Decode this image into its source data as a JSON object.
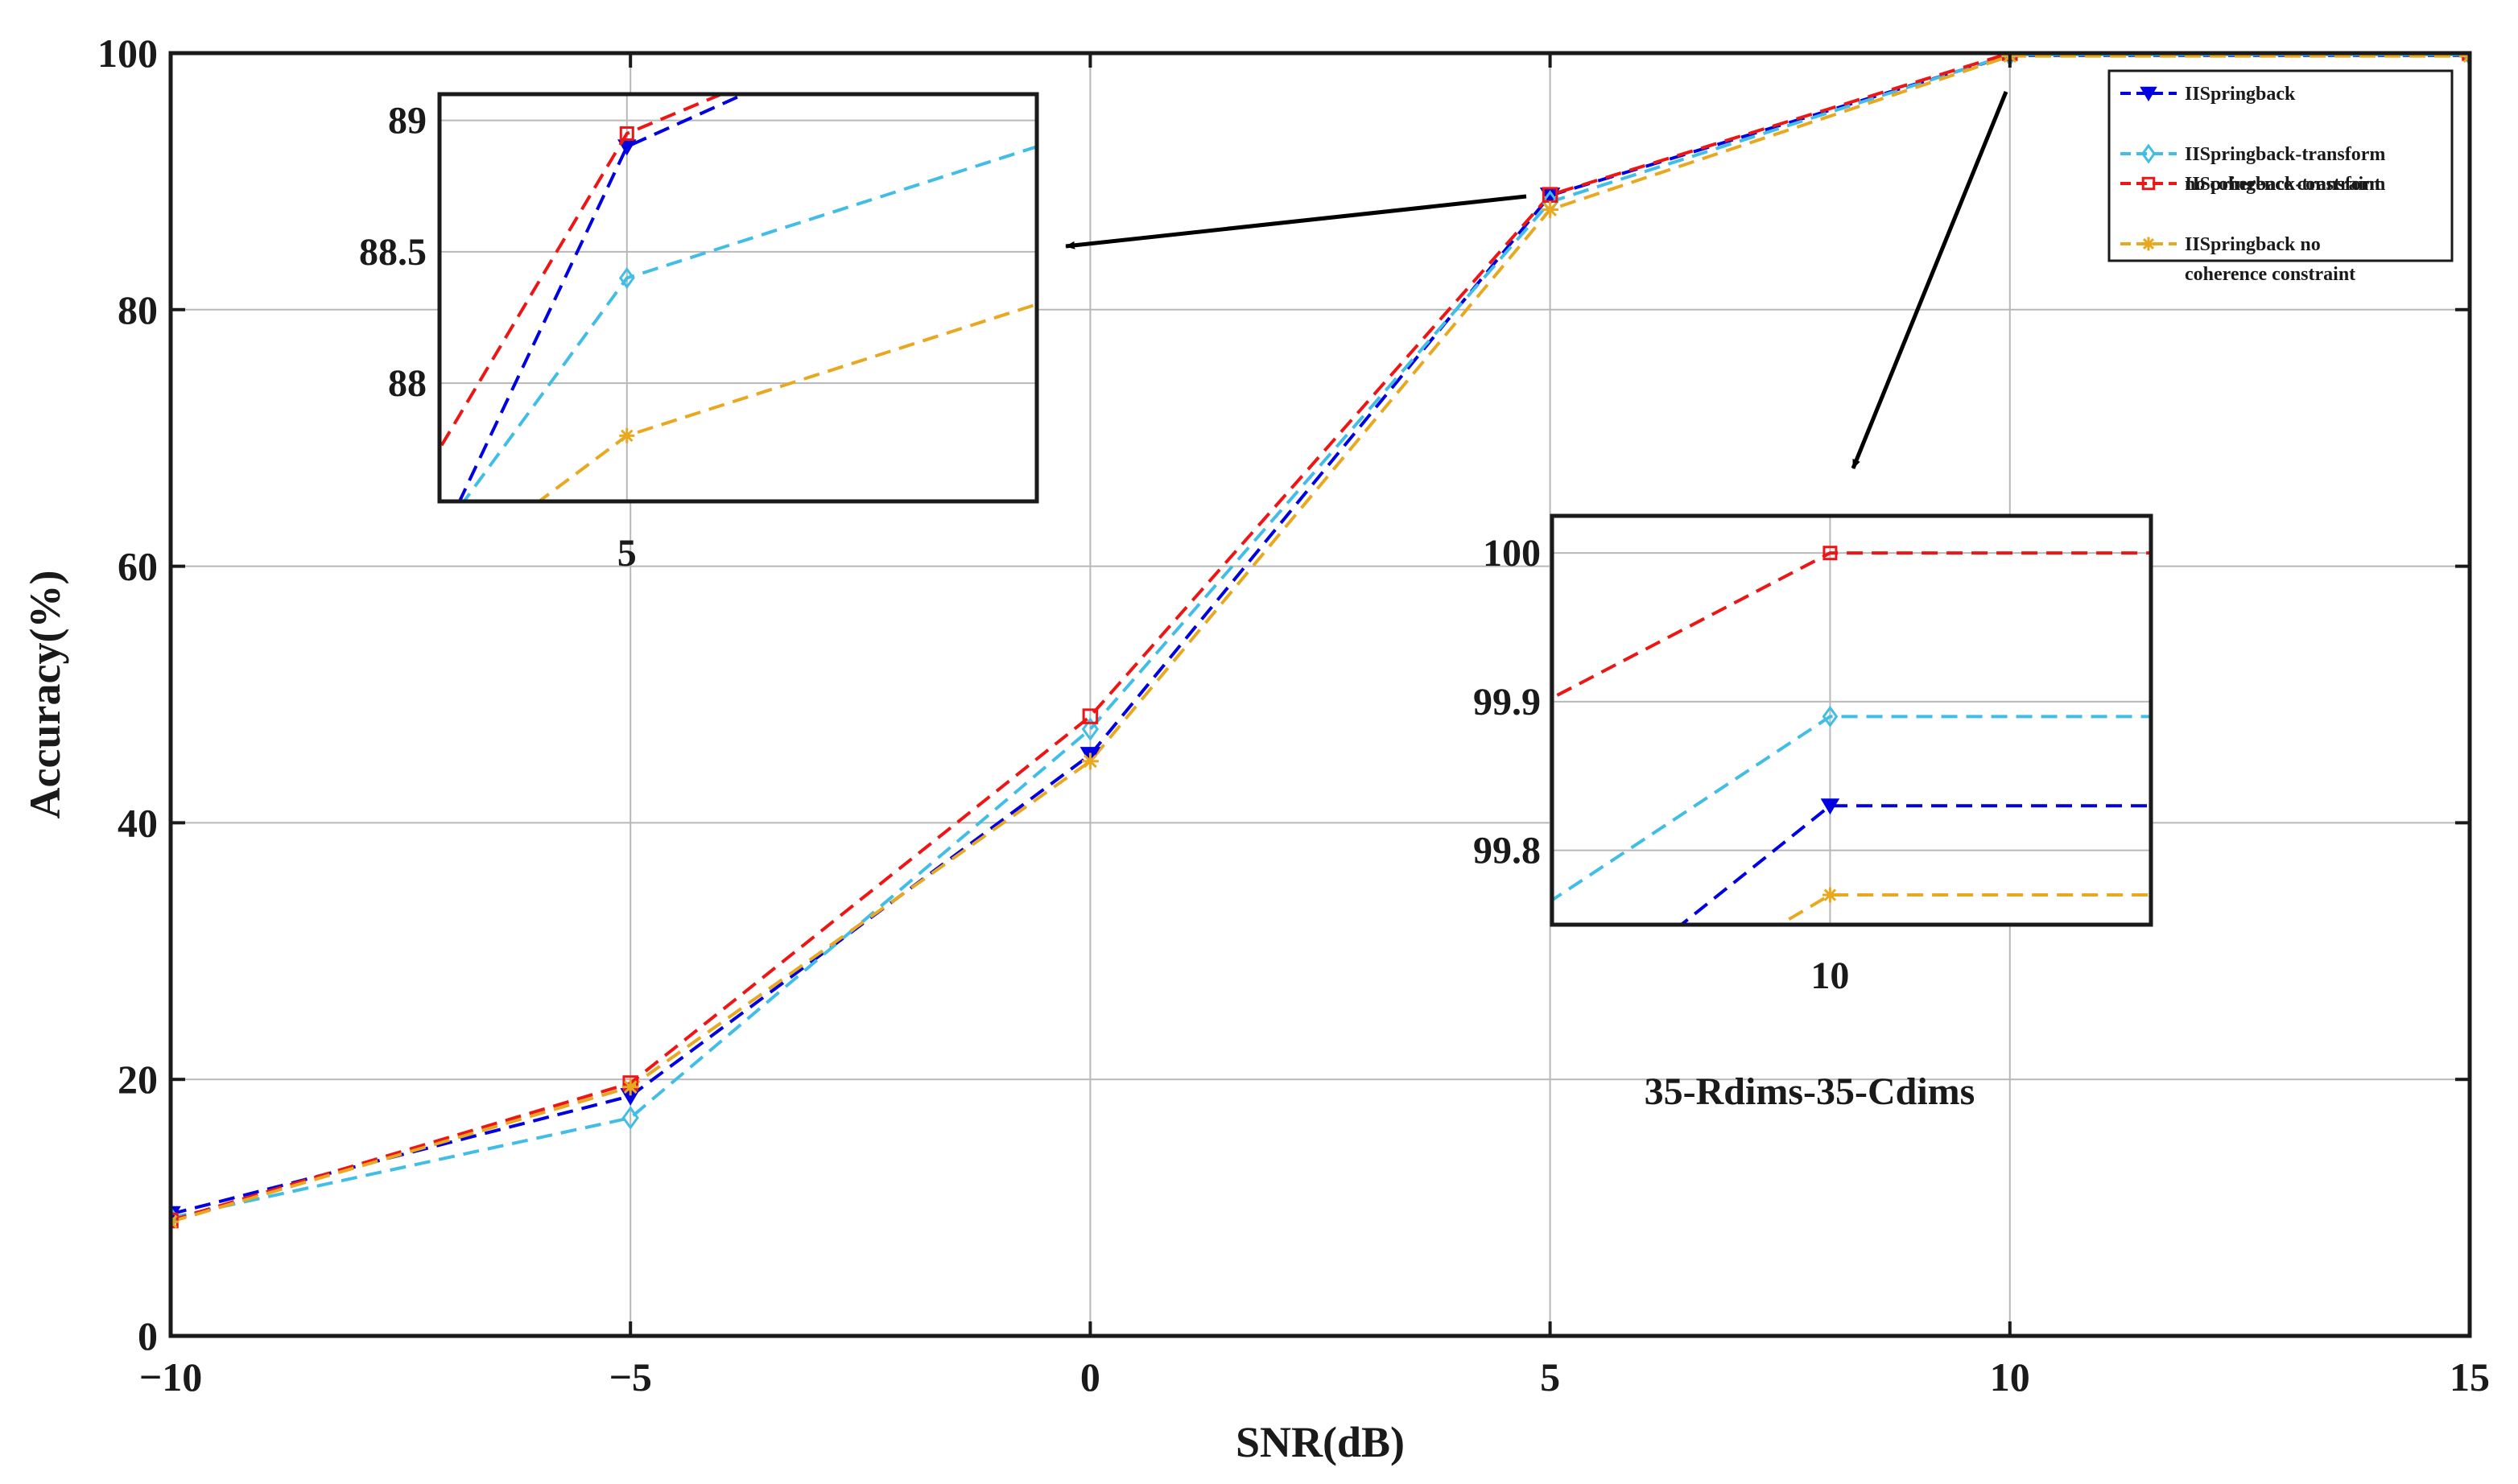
{
  "chart_data": {
    "type": "line",
    "title": "",
    "xlabel": "SNR(dB)",
    "ylabel": "Accuracy(%)",
    "xlim": [
      -10,
      15
    ],
    "ylim": [
      0,
      100
    ],
    "xticks": [
      -10,
      -5,
      0,
      5,
      10,
      15
    ],
    "yticks": [
      0,
      20,
      40,
      60,
      80,
      100
    ],
    "xtick_labels": [
      "−10",
      "−5",
      "0",
      "5",
      "10",
      "15"
    ],
    "ytick_labels": [
      "0",
      "20",
      "40",
      "60",
      "80",
      "100"
    ],
    "grid": true,
    "legend_position": "top-right",
    "x": [
      -10,
      -5,
      0,
      5,
      10,
      15
    ],
    "series": [
      {
        "name": "IISpringback",
        "legend_lines": [
          "IISpringback"
        ],
        "color": "#0000e0",
        "marker": "triangle-down",
        "values": [
          9.5,
          18.7,
          45.3,
          88.9,
          99.83,
          99.83
        ]
      },
      {
        "name": "IISpringback-transform no coherence constraint",
        "legend_lines": [
          "IISpringback-transform",
          "no coherence constraint"
        ],
        "color": "#42bde6",
        "marker": "diamond",
        "values": [
          9.2,
          17.0,
          47.3,
          88.4,
          99.89,
          99.89
        ]
      },
      {
        "name": "IISpringback-transform",
        "legend_lines": [
          "IISpringback-transform"
        ],
        "color": "#ee1515",
        "marker": "square",
        "values": [
          9.0,
          19.7,
          48.3,
          88.95,
          100.0,
          100.0
        ]
      },
      {
        "name": "IISpringback no coherence constraint",
        "legend_lines": [
          "IISpringback no",
          "coherence constraint"
        ],
        "color": "#e8a820",
        "marker": "asterisk",
        "values": [
          8.9,
          19.4,
          44.8,
          87.8,
          99.77,
          99.77
        ]
      }
    ],
    "insets": [
      {
        "name": "zoom-at-5",
        "xlim": [
          4.84,
          5.35
        ],
        "ylim": [
          87.55,
          89.1
        ],
        "xticks": [
          5
        ],
        "xtick_labels": [
          "5"
        ],
        "yticks": [
          88,
          88.5,
          89
        ],
        "ytick_labels": [
          "88",
          "88.5",
          "89"
        ],
        "series_values": [
          {
            "series": "IISpringback",
            "points": [
              [
                4.82,
                87.2
              ],
              [
                5.0,
                88.9
              ],
              [
                5.35,
                89.6
              ]
            ]
          },
          {
            "series": "IISpringback-transform no coherence constraint",
            "points": [
              [
                4.82,
                87.3
              ],
              [
                5.0,
                88.4
              ],
              [
                5.35,
                88.9
              ]
            ]
          },
          {
            "series": "IISpringback-transform",
            "points": [
              [
                4.82,
                87.6
              ],
              [
                5.0,
                88.95
              ],
              [
                5.35,
                89.6
              ]
            ]
          },
          {
            "series": "IISpringback no coherence constraint",
            "points": [
              [
                4.82,
                87.2
              ],
              [
                5.0,
                87.8
              ],
              [
                5.35,
                88.3
              ]
            ]
          }
        ]
      },
      {
        "name": "zoom-at-10",
        "xlim": [
          9.35,
          10.75
        ],
        "ylim": [
          99.75,
          100.025
        ],
        "xticks": [
          10
        ],
        "xtick_labels": [
          "10"
        ],
        "yticks": [
          99.8,
          99.9,
          100
        ],
        "ytick_labels": [
          "99.8",
          "99.9",
          "100"
        ],
        "series_values": [
          {
            "series": "IISpringback",
            "points": [
              [
                9.0,
                99.6
              ],
              [
                10.0,
                99.83
              ],
              [
                10.75,
                99.83
              ]
            ]
          },
          {
            "series": "IISpringback-transform no coherence constraint",
            "points": [
              [
                9.0,
                99.7
              ],
              [
                10.0,
                99.89
              ],
              [
                10.75,
                99.89
              ]
            ]
          },
          {
            "series": "IISpringback-transform",
            "points": [
              [
                9.0,
                99.85
              ],
              [
                10.0,
                100.0
              ],
              [
                10.75,
                100.0
              ]
            ]
          },
          {
            "series": "IISpringback no coherence constraint",
            "points": [
              [
                9.0,
                99.6
              ],
              [
                10.0,
                99.77
              ],
              [
                10.75,
                99.77
              ]
            ]
          }
        ]
      }
    ],
    "annotation": "35-Rdims-35-Cdims"
  }
}
